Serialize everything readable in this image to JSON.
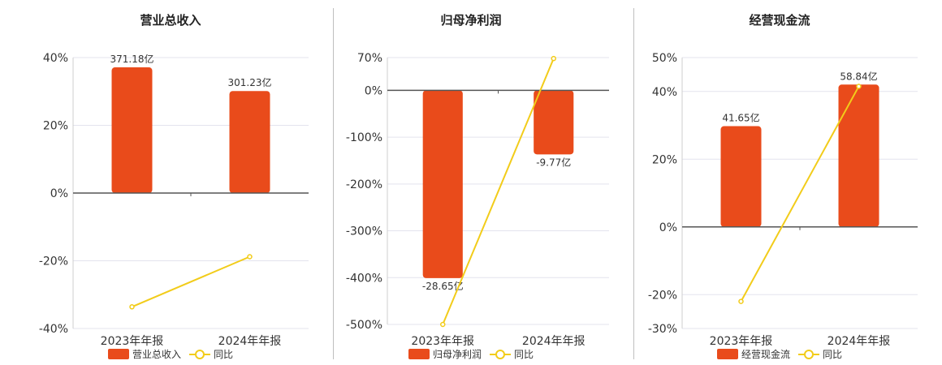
{
  "colors": {
    "bar": "#e94b1b",
    "line": "#f2cc1a",
    "axis": "#555555",
    "grid": "#e3e3ee",
    "divider": "#bfbfbf",
    "text": "#333333"
  },
  "chart_data": [
    {
      "type": "bar",
      "title": "营业总收入",
      "categories": [
        "2023年年报",
        "2024年年报"
      ],
      "series": [
        {
          "name": "营业总收入",
          "type": "bar",
          "values": [
            371.18,
            301.23
          ],
          "labels": [
            "371.18亿",
            "301.23亿"
          ]
        },
        {
          "name": "同比",
          "type": "line",
          "axis": "right",
          "values": [
            -33.6,
            -18.8
          ]
        }
      ],
      "y_ticks": [
        "40%",
        "20%",
        "0%",
        "-20%",
        "-40%"
      ],
      "ylim_percent": [
        -40,
        40
      ],
      "bar_scale_max": 400
    },
    {
      "type": "bar",
      "title": "归母净利润",
      "categories": [
        "2023年年报",
        "2024年年报"
      ],
      "series": [
        {
          "name": "归母净利润",
          "type": "bar",
          "values": [
            -28.65,
            -9.77
          ],
          "labels": [
            "-28.65亿",
            "-9.77亿"
          ]
        },
        {
          "name": "同比",
          "type": "line",
          "axis": "right",
          "values": [
            -500,
            68
          ]
        }
      ],
      "y_ticks": [
        "70%",
        "0%",
        "-100%",
        "-200%",
        "-300%",
        "-400%",
        "-500%"
      ],
      "ylim_percent": [
        -500,
        70
      ],
      "bar_scale_max": 5
    },
    {
      "type": "bar",
      "title": "经营现金流",
      "categories": [
        "2023年年报",
        "2024年年报"
      ],
      "series": [
        {
          "name": "经营现金流",
          "type": "bar",
          "values": [
            41.65,
            58.84
          ],
          "labels": [
            "41.65亿",
            "58.84亿"
          ]
        },
        {
          "name": "同比",
          "type": "line",
          "axis": "right",
          "values": [
            -22,
            41.5
          ]
        }
      ],
      "y_ticks": [
        "50%",
        "40%",
        "20%",
        "0%",
        "-20%",
        "-30%"
      ],
      "ylim_percent": [
        -30,
        50
      ],
      "bar_scale_max": 70
    }
  ]
}
